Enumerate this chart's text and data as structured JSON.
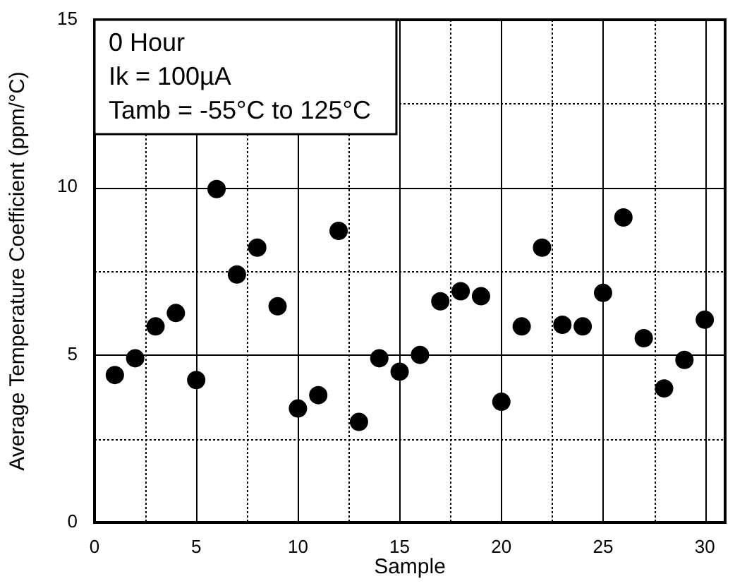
{
  "chart_data": {
    "type": "scatter",
    "xlabel": "Sample",
    "ylabel": "Average Temperature Coefficient (ppm/°C)",
    "annotations": [
      "0 Hour",
      "Ik = 100µA",
      "Tamb = -55°C to 125°C"
    ],
    "x": [
      1,
      2,
      3,
      4,
      5,
      6,
      7,
      8,
      9,
      10,
      11,
      12,
      13,
      14,
      15,
      16,
      17,
      18,
      19,
      20,
      21,
      22,
      23,
      24,
      25,
      26,
      27,
      28,
      29,
      30
    ],
    "series": [
      {
        "color": "#000000",
        "values": [
          4.4,
          4.9,
          5.85,
          6.25,
          4.25,
          9.95,
          7.4,
          8.2,
          6.45,
          3.4,
          3.8,
          8.7,
          3.0,
          4.9,
          4.5,
          5.0,
          6.6,
          6.9,
          6.75,
          3.6,
          5.85,
          8.2,
          5.9,
          5.85,
          6.85,
          9.1,
          5.5,
          4.0,
          4.85,
          6.05
        ]
      }
    ],
    "xlim": [
      0,
      31
    ],
    "xticks": [
      0,
      {
        "value": 2.5,
        "label": null
      },
      5,
      {
        "value": 7.5,
        "label": null
      },
      10,
      {
        "value": 12.5,
        "label": null
      },
      15,
      {
        "value": 17.5,
        "label": null
      },
      20,
      {
        "value": 22.5,
        "label": null
      },
      25,
      {
        "value": 27.5,
        "label": null
      },
      30
    ],
    "ylim": [
      0,
      15
    ],
    "yticks": [
      0,
      {
        "value": 2.5,
        "label": null
      },
      5,
      {
        "value": 7.5,
        "label": null
      },
      10,
      {
        "value": 12.5,
        "label": null
      },
      15
    ],
    "grid": true,
    "marker": "circle",
    "legend": false
  }
}
